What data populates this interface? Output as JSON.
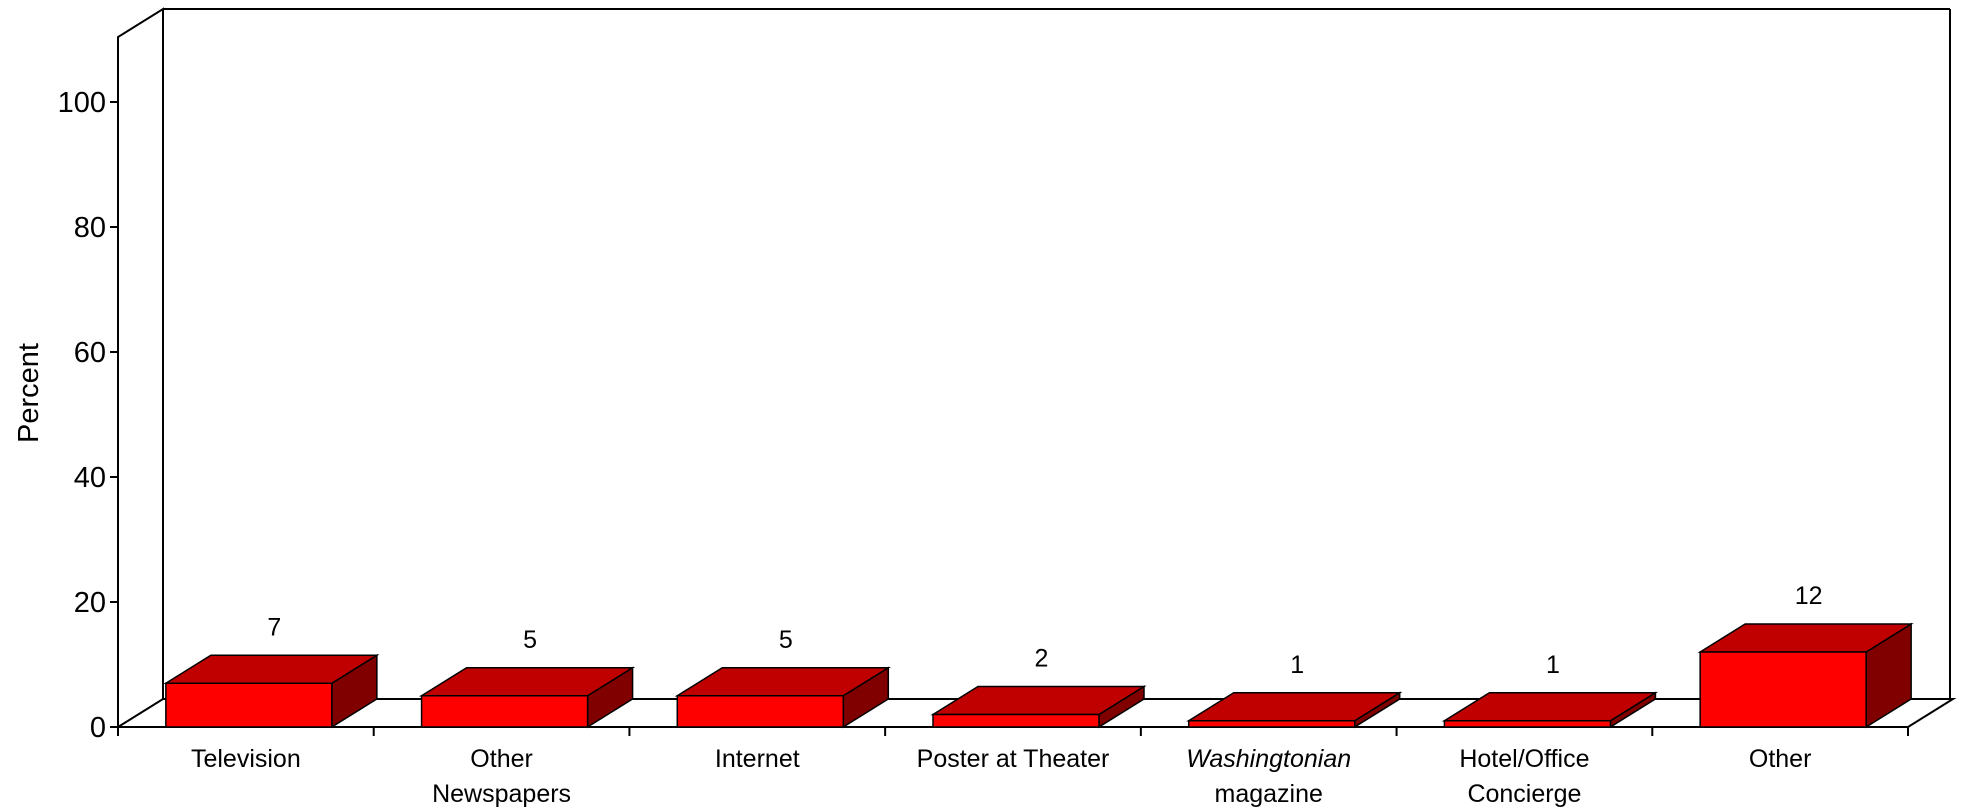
{
  "chart_data": {
    "type": "bar",
    "ylabel": "Percent",
    "xlabel": "",
    "ylim": [
      0,
      100
    ],
    "yticks": [
      "0",
      "20",
      "40",
      "60",
      "80",
      "100"
    ],
    "categories": [
      [
        "Television"
      ],
      [
        "Other",
        "Newspapers"
      ],
      [
        "Internet"
      ],
      [
        "Poster at Theater"
      ],
      [
        "Washingtonian",
        "magazine"
      ],
      [
        "Hotel/Office",
        "Concierge"
      ],
      [
        "Other"
      ]
    ],
    "values": [
      7,
      5,
      5,
      2,
      1,
      1,
      12
    ],
    "value_labels": [
      "7",
      "5",
      "5",
      "2",
      "1",
      "1",
      "12"
    ],
    "grid": false,
    "legend": "none",
    "colors": {
      "front": "#ff0000",
      "top": "#c00000",
      "side": "#800000"
    }
  }
}
